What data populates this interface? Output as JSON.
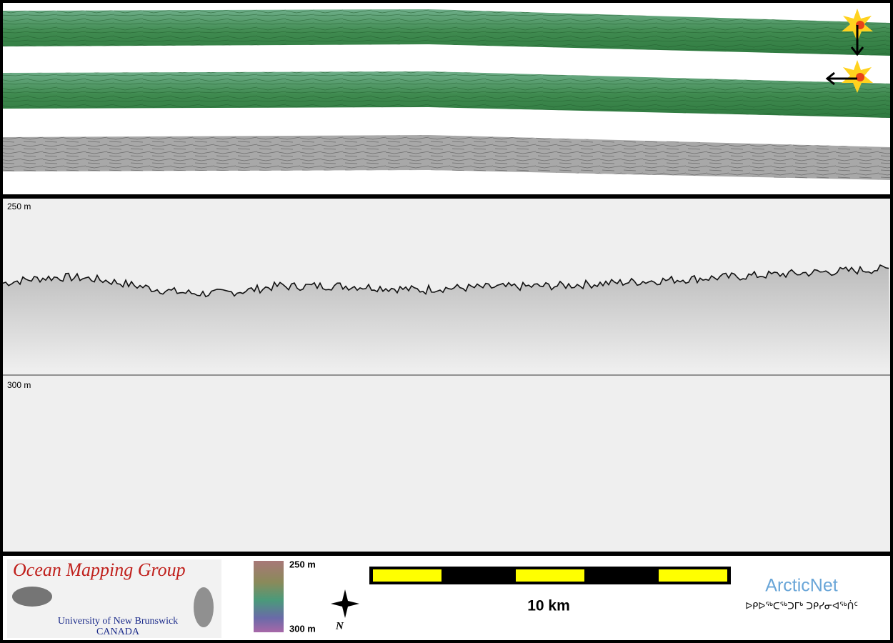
{
  "profile": {
    "top_depth_label": "250 m",
    "bottom_depth_label": "300 m"
  },
  "legend": {
    "logo_title": "Ocean Mapping Group",
    "logo_university": "University of New Brunswick",
    "logo_country": "CANADA",
    "colorbar_top": "250 m",
    "colorbar_bottom": "300 m",
    "scale_label": "10 km",
    "partner": "ArcticNet",
    "partner_syllabics": "ᐅᑭᐅᖅᑕᖅᑐᒥᒃ ᑐᑭᓯᓂᐊᖅᑏᑦ"
  }
}
